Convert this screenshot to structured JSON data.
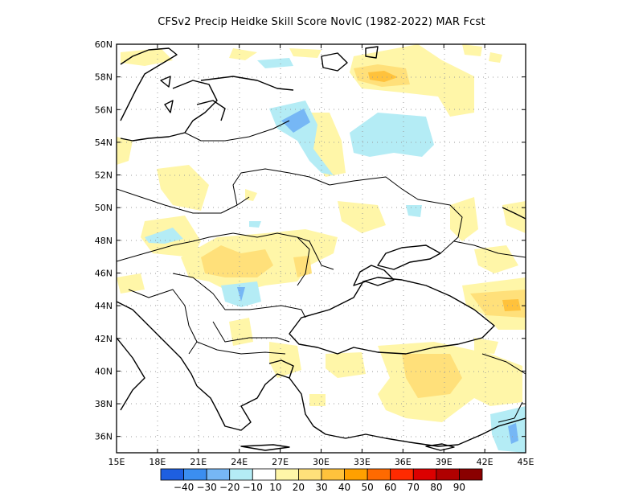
{
  "title": "CFSv2 Precip Heidke Skill Score NovIC (1982-2022) MAR Fcst",
  "map": {
    "lon_range": [
      15,
      45
    ],
    "lat_range": [
      35,
      60
    ],
    "lon_tick_labels": [
      "15E",
      "18E",
      "21E",
      "24E",
      "27E",
      "30E",
      "33E",
      "36E",
      "39E",
      "42E",
      "45E"
    ],
    "lat_tick_labels": [
      "36N",
      "38N",
      "40N",
      "42N",
      "44N",
      "46N",
      "48N",
      "50N",
      "52N",
      "54N",
      "56N",
      "58N",
      "60N"
    ],
    "gridlines": "dotted",
    "region": "Eastern Europe / Black Sea"
  },
  "colorbar": {
    "levels": [
      "-40",
      "-30",
      "-20",
      "-10",
      "10",
      "20",
      "30",
      "40",
      "50",
      "60",
      "70",
      "80",
      "90"
    ],
    "colors": [
      "#1e5fe0",
      "#3b8ef0",
      "#76b7f5",
      "#b4ecf5",
      "#ffffff",
      "#fff6a8",
      "#ffe07a",
      "#ffc23c",
      "#ffa000",
      "#ff6a00",
      "#ff2a00",
      "#dc0000",
      "#b00000",
      "#8a0000"
    ]
  },
  "shading_colors": {
    "y1": "#fff6a8",
    "y2": "#ffe07a",
    "o1": "#ffc23c",
    "c1": "#b4ecf5",
    "b1": "#76b7f5",
    "b2": "#3b8ef0"
  }
}
